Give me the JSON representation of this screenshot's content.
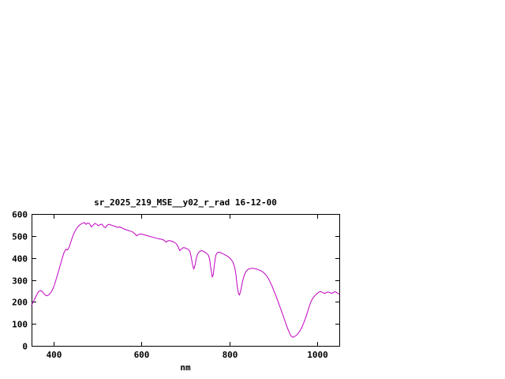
{
  "window": {
    "background_color": "#ffffff",
    "plot_border_color": "#000000",
    "text_color": "#000000"
  },
  "chart_data": {
    "type": "line",
    "title": "sr_2025_219_MSE__y02_r_rad 16-12-00",
    "xlabel": "nm",
    "ylabel": "",
    "xlim": [
      350,
      1050
    ],
    "ylim": [
      0,
      600
    ],
    "xticks": [
      "400",
      "600",
      "800",
      "1000"
    ],
    "xtick_values": [
      400,
      600,
      800,
      1000
    ],
    "yticks": [
      "0",
      "100",
      "200",
      "300",
      "400",
      "500",
      "600"
    ],
    "ytick_values": [
      0,
      100,
      200,
      300,
      400,
      500,
      600
    ],
    "grid": false,
    "legend_position": "none",
    "series": [
      {
        "color": "#c000c0",
        "points": [
          [
            350,
            185
          ],
          [
            355,
            205
          ],
          [
            360,
            225
          ],
          [
            365,
            245
          ],
          [
            370,
            252
          ],
          [
            374,
            248
          ],
          [
            378,
            238
          ],
          [
            382,
            230
          ],
          [
            386,
            228
          ],
          [
            390,
            233
          ],
          [
            395,
            246
          ],
          [
            400,
            266
          ],
          [
            405,
            296
          ],
          [
            410,
            330
          ],
          [
            415,
            365
          ],
          [
            420,
            400
          ],
          [
            424,
            425
          ],
          [
            428,
            440
          ],
          [
            432,
            436
          ],
          [
            436,
            452
          ],
          [
            440,
            476
          ],
          [
            445,
            506
          ],
          [
            450,
            526
          ],
          [
            455,
            541
          ],
          [
            460,
            551
          ],
          [
            465,
            557
          ],
          [
            470,
            561
          ],
          [
            474,
            553
          ],
          [
            478,
            559
          ],
          [
            482,
            556
          ],
          [
            486,
            541
          ],
          [
            490,
            549
          ],
          [
            494,
            557
          ],
          [
            498,
            553
          ],
          [
            502,
            547
          ],
          [
            506,
            551
          ],
          [
            510,
            554
          ],
          [
            514,
            543
          ],
          [
            518,
            537
          ],
          [
            522,
            549
          ],
          [
            526,
            553
          ],
          [
            530,
            550
          ],
          [
            535,
            547
          ],
          [
            540,
            544
          ],
          [
            545,
            539
          ],
          [
            550,
            541
          ],
          [
            555,
            537
          ],
          [
            560,
            532
          ],
          [
            565,
            528
          ],
          [
            570,
            525
          ],
          [
            575,
            522
          ],
          [
            580,
            518
          ],
          [
            585,
            510
          ],
          [
            589,
            501
          ],
          [
            593,
            506
          ],
          [
            598,
            509
          ],
          [
            603,
            507
          ],
          [
            610,
            503
          ],
          [
            617,
            499
          ],
          [
            624,
            495
          ],
          [
            631,
            491
          ],
          [
            638,
            488
          ],
          [
            645,
            485
          ],
          [
            651,
            481
          ],
          [
            656,
            472
          ],
          [
            661,
            479
          ],
          [
            666,
            478
          ],
          [
            672,
            474
          ],
          [
            678,
            467
          ],
          [
            683,
            453
          ],
          [
            687,
            433
          ],
          [
            691,
            441
          ],
          [
            695,
            447
          ],
          [
            700,
            445
          ],
          [
            705,
            441
          ],
          [
            710,
            431
          ],
          [
            713,
            406
          ],
          [
            716,
            371
          ],
          [
            719,
            349
          ],
          [
            722,
            369
          ],
          [
            725,
            401
          ],
          [
            728,
            419
          ],
          [
            732,
            429
          ],
          [
            736,
            433
          ],
          [
            740,
            431
          ],
          [
            744,
            427
          ],
          [
            748,
            421
          ],
          [
            752,
            413
          ],
          [
            755,
            396
          ],
          [
            758,
            351
          ],
          [
            761,
            313
          ],
          [
            763,
            321
          ],
          [
            766,
            371
          ],
          [
            769,
            411
          ],
          [
            772,
            423
          ],
          [
            776,
            427
          ],
          [
            780,
            424
          ],
          [
            784,
            420
          ],
          [
            788,
            416
          ],
          [
            792,
            412
          ],
          [
            796,
            407
          ],
          [
            800,
            401
          ],
          [
            804,
            393
          ],
          [
            808,
            381
          ],
          [
            812,
            358
          ],
          [
            815,
            322
          ],
          [
            818,
            268
          ],
          [
            821,
            236
          ],
          [
            823,
            231
          ],
          [
            826,
            253
          ],
          [
            830,
            293
          ],
          [
            834,
            323
          ],
          [
            838,
            339
          ],
          [
            842,
            347
          ],
          [
            846,
            351
          ],
          [
            850,
            352
          ],
          [
            854,
            353
          ],
          [
            858,
            351
          ],
          [
            862,
            349
          ],
          [
            866,
            346
          ],
          [
            870,
            343
          ],
          [
            874,
            339
          ],
          [
            878,
            333
          ],
          [
            882,
            325
          ],
          [
            886,
            315
          ],
          [
            890,
            301
          ],
          [
            894,
            285
          ],
          [
            898,
            267
          ],
          [
            902,
            247
          ],
          [
            906,
            227
          ],
          [
            910,
            205
          ],
          [
            914,
            183
          ],
          [
            918,
            161
          ],
          [
            922,
            139
          ],
          [
            926,
            115
          ],
          [
            930,
            93
          ],
          [
            934,
            71
          ],
          [
            938,
            53
          ],
          [
            941,
            43
          ],
          [
            944,
            39
          ],
          [
            947,
            41
          ],
          [
            950,
            45
          ],
          [
            953,
            49
          ],
          [
            956,
            56
          ],
          [
            960,
            66
          ],
          [
            964,
            81
          ],
          [
            968,
            99
          ],
          [
            972,
            119
          ],
          [
            976,
            143
          ],
          [
            980,
            169
          ],
          [
            984,
            193
          ],
          [
            988,
            211
          ],
          [
            992,
            223
          ],
          [
            996,
            231
          ],
          [
            1000,
            239
          ],
          [
            1004,
            245
          ],
          [
            1008,
            247
          ],
          [
            1012,
            243
          ],
          [
            1016,
            239
          ],
          [
            1020,
            241
          ],
          [
            1024,
            245
          ],
          [
            1028,
            243
          ],
          [
            1032,
            239
          ],
          [
            1036,
            241
          ],
          [
            1040,
            247
          ],
          [
            1044,
            242
          ],
          [
            1048,
            237
          ],
          [
            1050,
            235
          ]
        ]
      }
    ]
  }
}
